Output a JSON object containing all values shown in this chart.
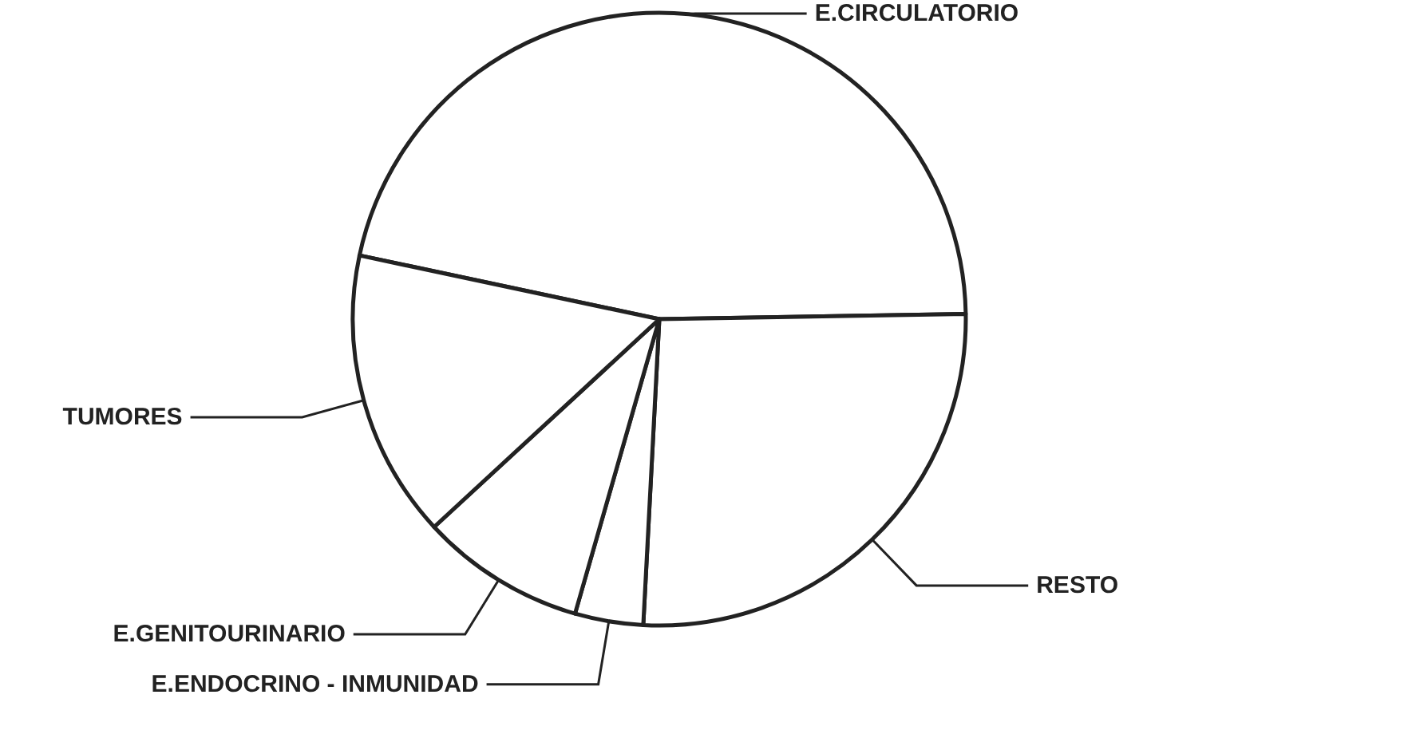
{
  "chart_data": {
    "type": "pie",
    "categories": [
      "E.CIRCULATORIO",
      "RESTO",
      "E.ENDOCRINO - INMUNIDAD",
      "E.GENITOURINARIO",
      "TUMORES"
    ],
    "values": [
      46.4,
      26.1,
      3.6,
      8.7,
      15.2
    ],
    "colors": [
      "#ffffff",
      "#ffffff",
      "#ffffff",
      "#ffffff",
      "#ffffff"
    ],
    "legend": false
  }
}
